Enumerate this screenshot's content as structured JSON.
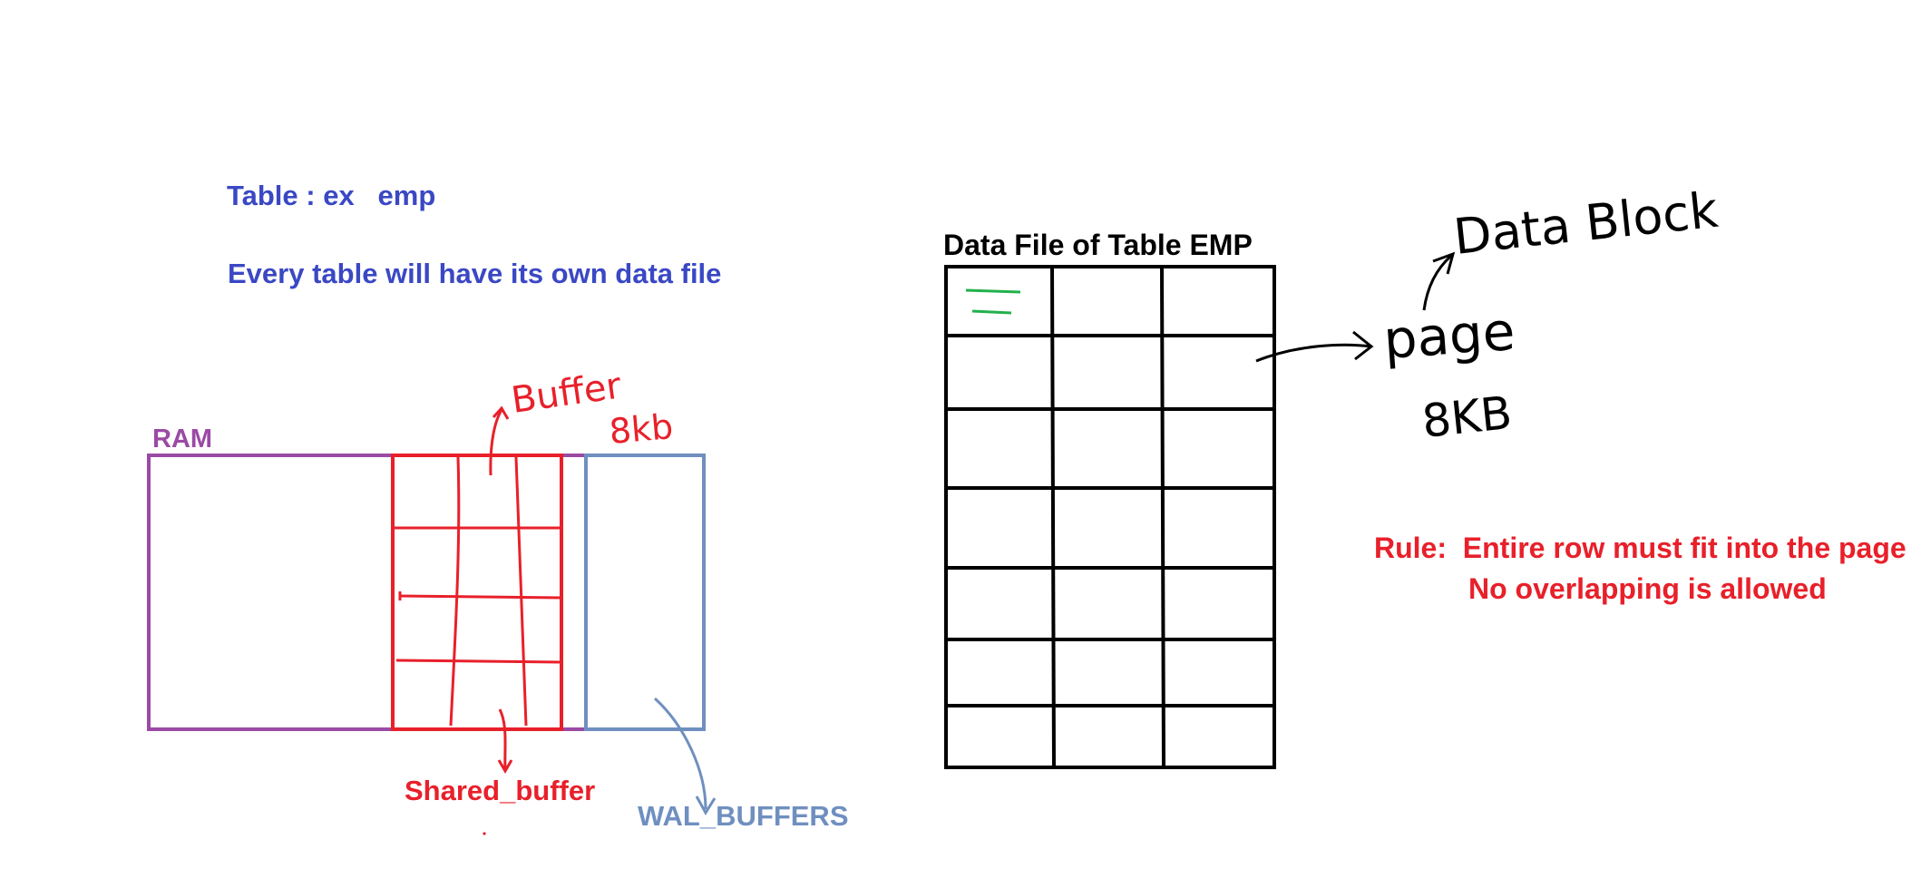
{
  "notes": {
    "table_example": "Table : ex   emp",
    "own_data_file": "Every table will have its own data file"
  },
  "ram": {
    "label": "RAM",
    "shared_buffer_label": "Shared_buffer",
    "wal_buffers_label": "WAL_BUFFERS",
    "buffer_note": "Buffer",
    "buffer_size_note": "8kb"
  },
  "data_file": {
    "title": "Data File of Table EMP",
    "rows": 7,
    "columns": 3
  },
  "page_note": {
    "page": "page",
    "size": "8KB",
    "data_block": "Data Block"
  },
  "rule": {
    "line1": "Rule:  Entire row must fit into the page",
    "line2": "No overlapping is allowed"
  },
  "colors": {
    "blue_text": "#3a48c4",
    "ram_purple": "#9b4aa5",
    "red": "#e8202a",
    "wal_blue": "#6f8fc0",
    "black": "#000000",
    "green": "#22b14c"
  }
}
